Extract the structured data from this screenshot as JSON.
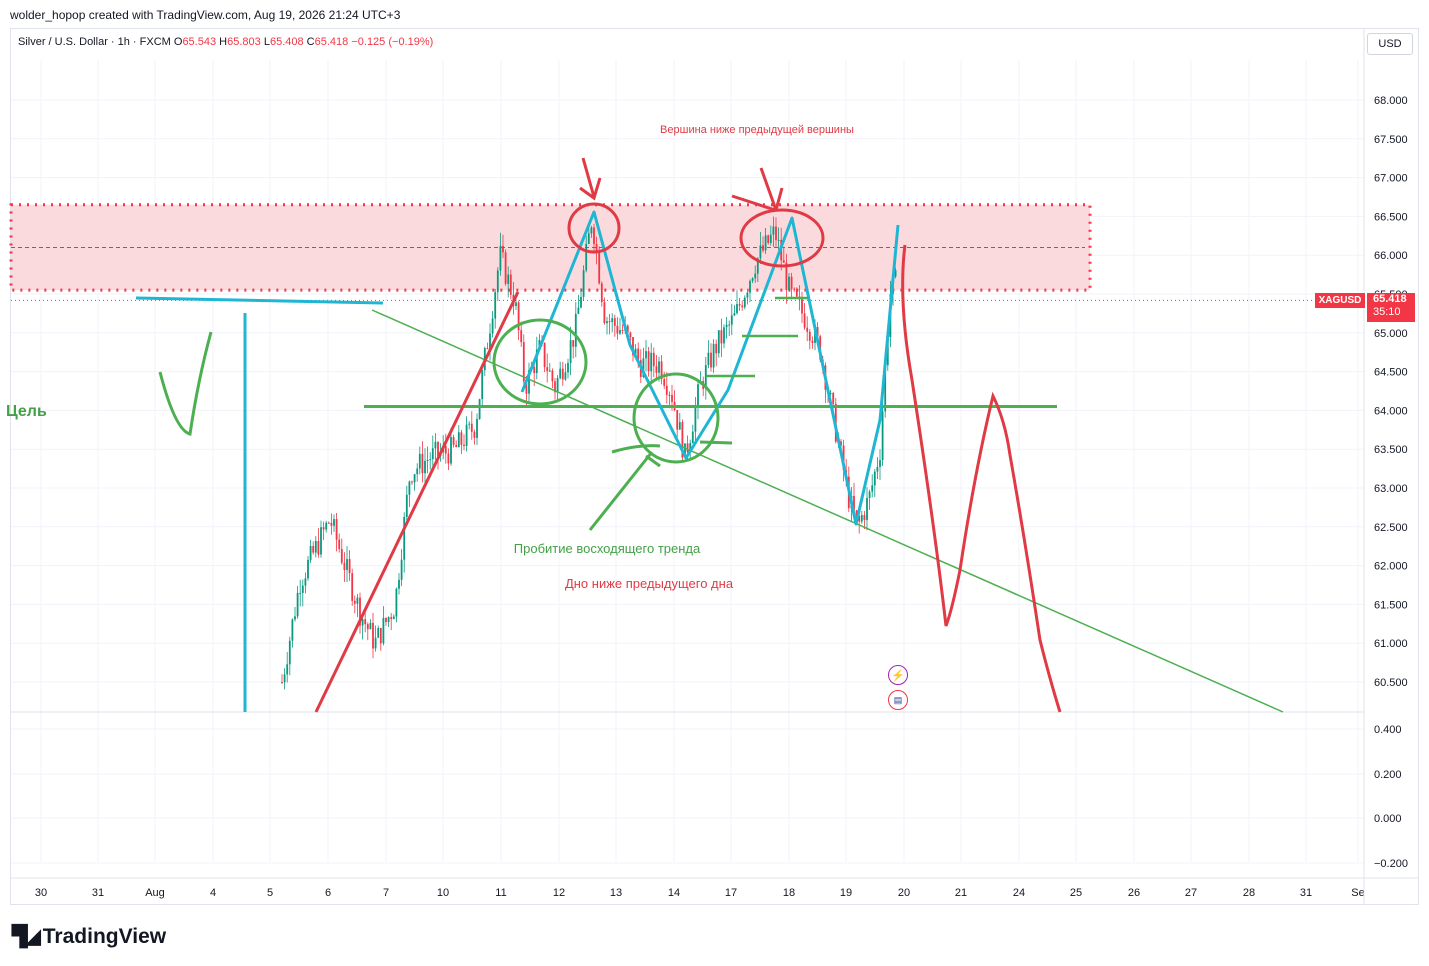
{
  "attribution": "wolder_hopop created with TradingView.com, Aug 19, 2026 21:24 UTC+3",
  "legend": {
    "symbol": "Silver / U.S. Dollar · 1h · FXCM",
    "open_label": "O",
    "open": "65.543",
    "high_label": "H",
    "high": "65.803",
    "low_label": "L",
    "low": "65.408",
    "close_label": "C",
    "close": "65.418",
    "change": "−0.125 (−0.19%)"
  },
  "currency_button": "USD",
  "ticker_badge": "XAGUSD",
  "last_price": "65.418",
  "countdown": "35:10",
  "brand": "TradingView",
  "colors": {
    "up": "#089981",
    "down": "#f23645",
    "annotation_red": "#e03a45",
    "annotation_green": "#4caf50",
    "annotation_blue": "#1fb6d4",
    "zone_fill": "#fadadd"
  },
  "icons": [
    "lightning-icon",
    "us-flag-icon"
  ],
  "annotations": {
    "top_text": "Вершина ниже предыдущей вершины",
    "breakout_text": "Пробитие восходящего тренда",
    "bottom_text": "Дно ниже предыдущего дна",
    "target_text": "Цель"
  },
  "chart_data": {
    "type": "candlestick",
    "y_axis_labels": [
      "68.000",
      "67.500",
      "67.000",
      "66.500",
      "66.000",
      "65.500",
      "65.000",
      "64.500",
      "64.000",
      "63.500",
      "63.000",
      "62.500",
      "62.000",
      "61.500",
      "61.000",
      "60.500"
    ],
    "lower_axis_labels": [
      "0.400",
      "0.200",
      "0.000",
      "−0.200"
    ],
    "x_axis_labels": [
      "30",
      "31",
      "Aug",
      "4",
      "5",
      "6",
      "7",
      "10",
      "11",
      "12",
      "13",
      "14",
      "17",
      "18",
      "19",
      "20",
      "21",
      "24",
      "25",
      "26",
      "27",
      "28",
      "31",
      "Se"
    ],
    "ylim": [
      60.2,
      68.4
    ],
    "resistance_zone": [
      65.55,
      66.65
    ],
    "support_level": 64.05,
    "swing_points": [
      {
        "label": "Aug 5",
        "value": 60.5
      },
      {
        "label": "Aug 11",
        "value": 66.3
      },
      {
        "label": "Aug 11",
        "value": 64.2
      },
      {
        "label": "Aug 12",
        "value": 66.6
      },
      {
        "label": "Aug 14",
        "value": 63.4
      },
      {
        "label": "Aug 18",
        "value": 66.5
      },
      {
        "label": "Aug 19",
        "value": 62.5
      },
      {
        "label": "Aug 20",
        "value": 65.8
      }
    ],
    "last": 65.418
  }
}
